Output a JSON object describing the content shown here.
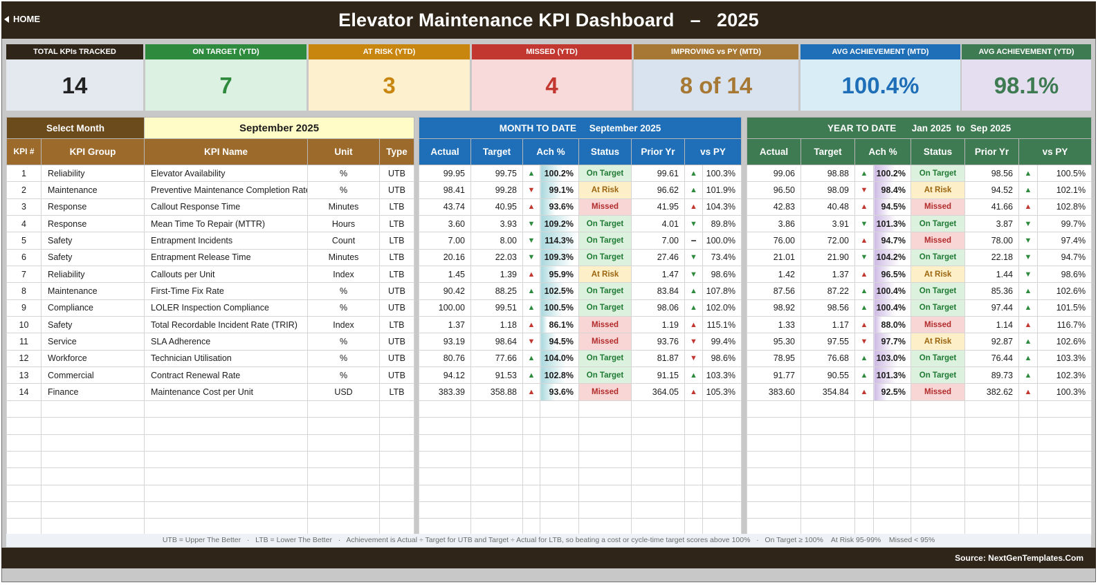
{
  "header": {
    "home_label": "HOME",
    "title": "Elevator Maintenance KPI Dashboard   –   2025"
  },
  "cards": [
    {
      "label": "TOTAL KPIs TRACKED",
      "value": "14",
      "head_color": "#2f2519",
      "bg": "#e4e8ef",
      "fg": "#222222"
    },
    {
      "label": "ON TARGET (YTD)",
      "value": "7",
      "head_color": "#2e8b3e",
      "bg": "#dcf1e1",
      "fg": "#2e8b3e"
    },
    {
      "label": "AT RISK (YTD)",
      "value": "3",
      "head_color": "#c8860f",
      "bg": "#fdf0cf",
      "fg": "#c8860f"
    },
    {
      "label": "MISSED (YTD)",
      "value": "4",
      "head_color": "#c2372f",
      "bg": "#f9dada",
      "fg": "#c2372f"
    },
    {
      "label": "IMPROVING vs PY (MTD)",
      "value": "8 of 14",
      "head_color": "#a77833",
      "bg": "#d8e3ef",
      "fg": "#a77833"
    },
    {
      "label": "AVG ACHIEVEMENT (MTD)",
      "value": "100.4%",
      "head_color": "#1f6fb8",
      "bg": "#d9edf6",
      "fg": "#1f6fb8"
    },
    {
      "label": "AVG ACHIEVEMENT (YTD)",
      "value": "98.1%",
      "head_color": "#3f7b52",
      "bg": "#e5def0",
      "fg": "#3f7b52"
    }
  ],
  "select_month": {
    "label": "Select Month",
    "value": "September 2025"
  },
  "mtd": {
    "title": "MONTH TO DATE     September 2025"
  },
  "ytd": {
    "title": "YEAR TO DATE      Jan 2025  to  Sep 2025"
  },
  "columns": {
    "kpi_no": "KPI #",
    "group": "KPI Group",
    "name": "KPI Name",
    "unit": "Unit",
    "type": "Type",
    "actual": "Actual",
    "target": "Target",
    "ach": "Ach %",
    "status": "Status",
    "prior": "Prior Yr",
    "vspy": "vs PY"
  },
  "rows": [
    {
      "no": "1",
      "group": "Reliability",
      "name": "Elevator Availability",
      "unit": "%",
      "type": "UTB",
      "mtd": {
        "actual": "99.95",
        "target": "99.75",
        "ach_dir": "up",
        "ach": "100.2%",
        "status": "On Target",
        "prior": "99.61",
        "py_dir": "up",
        "vspy": "100.3%"
      },
      "ytd": {
        "actual": "99.06",
        "target": "98.88",
        "ach_dir": "up",
        "ach": "100.2%",
        "status": "On Target",
        "prior": "98.56",
        "py_dir": "up",
        "vspy": "100.5%"
      }
    },
    {
      "no": "2",
      "group": "Maintenance",
      "name": "Preventive Maintenance Completion Rate",
      "unit": "%",
      "type": "UTB",
      "mtd": {
        "actual": "98.41",
        "target": "99.28",
        "ach_dir": "down",
        "ach": "99.1%",
        "status": "At Risk",
        "prior": "96.62",
        "py_dir": "up",
        "vspy": "101.9%"
      },
      "ytd": {
        "actual": "96.50",
        "target": "98.09",
        "ach_dir": "down",
        "ach": "98.4%",
        "status": "At Risk",
        "prior": "94.52",
        "py_dir": "up",
        "vspy": "102.1%"
      }
    },
    {
      "no": "3",
      "group": "Response",
      "name": "Callout Response Time",
      "unit": "Minutes",
      "type": "LTB",
      "mtd": {
        "actual": "43.74",
        "target": "40.95",
        "ach_dir": "up-red",
        "ach": "93.6%",
        "status": "Missed",
        "prior": "41.95",
        "py_dir": "up-red",
        "vspy": "104.3%"
      },
      "ytd": {
        "actual": "42.83",
        "target": "40.48",
        "ach_dir": "up-red",
        "ach": "94.5%",
        "status": "Missed",
        "prior": "41.66",
        "py_dir": "up-red",
        "vspy": "102.8%"
      }
    },
    {
      "no": "4",
      "group": "Response",
      "name": "Mean Time To Repair (MTTR)",
      "unit": "Hours",
      "type": "LTB",
      "mtd": {
        "actual": "3.60",
        "target": "3.93",
        "ach_dir": "down-green",
        "ach": "109.2%",
        "status": "On Target",
        "prior": "4.01",
        "py_dir": "down-green",
        "vspy": "89.8%"
      },
      "ytd": {
        "actual": "3.86",
        "target": "3.91",
        "ach_dir": "down-green",
        "ach": "101.3%",
        "status": "On Target",
        "prior": "3.87",
        "py_dir": "down-green",
        "vspy": "99.7%"
      }
    },
    {
      "no": "5",
      "group": "Safety",
      "name": "Entrapment Incidents",
      "unit": "Count",
      "type": "LTB",
      "mtd": {
        "actual": "7.00",
        "target": "8.00",
        "ach_dir": "down-green",
        "ach": "114.3%",
        "status": "On Target",
        "prior": "7.00",
        "py_dir": "flat",
        "vspy": "100.0%"
      },
      "ytd": {
        "actual": "76.00",
        "target": "72.00",
        "ach_dir": "up-red",
        "ach": "94.7%",
        "status": "Missed",
        "prior": "78.00",
        "py_dir": "down-green",
        "vspy": "97.4%"
      }
    },
    {
      "no": "6",
      "group": "Safety",
      "name": "Entrapment Release Time",
      "unit": "Minutes",
      "type": "LTB",
      "mtd": {
        "actual": "20.16",
        "target": "22.03",
        "ach_dir": "down-green",
        "ach": "109.3%",
        "status": "On Target",
        "prior": "27.46",
        "py_dir": "down-green",
        "vspy": "73.4%"
      },
      "ytd": {
        "actual": "21.01",
        "target": "21.90",
        "ach_dir": "down-green",
        "ach": "104.2%",
        "status": "On Target",
        "prior": "22.18",
        "py_dir": "down-green",
        "vspy": "94.7%"
      }
    },
    {
      "no": "7",
      "group": "Reliability",
      "name": "Callouts per Unit",
      "unit": "Index",
      "type": "LTB",
      "mtd": {
        "actual": "1.45",
        "target": "1.39",
        "ach_dir": "up-red",
        "ach": "95.9%",
        "status": "At Risk",
        "prior": "1.47",
        "py_dir": "down-green",
        "vspy": "98.6%"
      },
      "ytd": {
        "actual": "1.42",
        "target": "1.37",
        "ach_dir": "up-red",
        "ach": "96.5%",
        "status": "At Risk",
        "prior": "1.44",
        "py_dir": "down-green",
        "vspy": "98.6%"
      }
    },
    {
      "no": "8",
      "group": "Maintenance",
      "name": "First-Time Fix Rate",
      "unit": "%",
      "type": "UTB",
      "mtd": {
        "actual": "90.42",
        "target": "88.25",
        "ach_dir": "up",
        "ach": "102.5%",
        "status": "On Target",
        "prior": "83.84",
        "py_dir": "up",
        "vspy": "107.8%"
      },
      "ytd": {
        "actual": "87.56",
        "target": "87.22",
        "ach_dir": "up",
        "ach": "100.4%",
        "status": "On Target",
        "prior": "85.36",
        "py_dir": "up",
        "vspy": "102.6%"
      }
    },
    {
      "no": "9",
      "group": "Compliance",
      "name": "LOLER Inspection Compliance",
      "unit": "%",
      "type": "UTB",
      "mtd": {
        "actual": "100.00",
        "target": "99.51",
        "ach_dir": "up",
        "ach": "100.5%",
        "status": "On Target",
        "prior": "98.06",
        "py_dir": "up",
        "vspy": "102.0%"
      },
      "ytd": {
        "actual": "98.92",
        "target": "98.56",
        "ach_dir": "up",
        "ach": "100.4%",
        "status": "On Target",
        "prior": "97.44",
        "py_dir": "up",
        "vspy": "101.5%"
      }
    },
    {
      "no": "10",
      "group": "Safety",
      "name": "Total Recordable Incident Rate (TRIR)",
      "unit": "Index",
      "type": "LTB",
      "mtd": {
        "actual": "1.37",
        "target": "1.18",
        "ach_dir": "up-red",
        "ach": "86.1%",
        "status": "Missed",
        "prior": "1.19",
        "py_dir": "up-red",
        "vspy": "115.1%"
      },
      "ytd": {
        "actual": "1.33",
        "target": "1.17",
        "ach_dir": "up-red",
        "ach": "88.0%",
        "status": "Missed",
        "prior": "1.14",
        "py_dir": "up-red",
        "vspy": "116.7%"
      }
    },
    {
      "no": "11",
      "group": "Service",
      "name": "SLA Adherence",
      "unit": "%",
      "type": "UTB",
      "mtd": {
        "actual": "93.19",
        "target": "98.64",
        "ach_dir": "down",
        "ach": "94.5%",
        "status": "Missed",
        "prior": "93.76",
        "py_dir": "down",
        "vspy": "99.4%"
      },
      "ytd": {
        "actual": "95.30",
        "target": "97.55",
        "ach_dir": "down",
        "ach": "97.7%",
        "status": "At Risk",
        "prior": "92.87",
        "py_dir": "up",
        "vspy": "102.6%"
      }
    },
    {
      "no": "12",
      "group": "Workforce",
      "name": "Technician Utilisation",
      "unit": "%",
      "type": "UTB",
      "mtd": {
        "actual": "80.76",
        "target": "77.66",
        "ach_dir": "up",
        "ach": "104.0%",
        "status": "On Target",
        "prior": "81.87",
        "py_dir": "down",
        "vspy": "98.6%"
      },
      "ytd": {
        "actual": "78.95",
        "target": "76.68",
        "ach_dir": "up",
        "ach": "103.0%",
        "status": "On Target",
        "prior": "76.44",
        "py_dir": "up",
        "vspy": "103.3%"
      }
    },
    {
      "no": "13",
      "group": "Commercial",
      "name": "Contract Renewal Rate",
      "unit": "%",
      "type": "UTB",
      "mtd": {
        "actual": "94.12",
        "target": "91.53",
        "ach_dir": "up",
        "ach": "102.8%",
        "status": "On Target",
        "prior": "91.15",
        "py_dir": "up",
        "vspy": "103.3%"
      },
      "ytd": {
        "actual": "91.77",
        "target": "90.55",
        "ach_dir": "up",
        "ach": "101.3%",
        "status": "On Target",
        "prior": "89.73",
        "py_dir": "up",
        "vspy": "102.3%"
      }
    },
    {
      "no": "14",
      "group": "Finance",
      "name": "Maintenance Cost per Unit",
      "unit": "USD",
      "type": "LTB",
      "mtd": {
        "actual": "383.39",
        "target": "358.88",
        "ach_dir": "up-red",
        "ach": "93.6%",
        "status": "Missed",
        "prior": "364.05",
        "py_dir": "up-red",
        "vspy": "105.3%"
      },
      "ytd": {
        "actual": "383.60",
        "target": "354.84",
        "ach_dir": "up-red",
        "ach": "92.5%",
        "status": "Missed",
        "prior": "382.62",
        "py_dir": "up-red",
        "vspy": "100.3%"
      }
    }
  ],
  "footer": {
    "note": "UTB = Upper The Better   ·   LTB = Lower The Better   ·   Achievement is Actual ÷ Target for UTB and Target ÷ Actual for LTB, so beating a cost or cycle-time target scores above 100%   ·   On Target ≥ 100%    At Risk 95-99%    Missed < 95%",
    "source": "Source: NextGenTemplates.Com"
  }
}
